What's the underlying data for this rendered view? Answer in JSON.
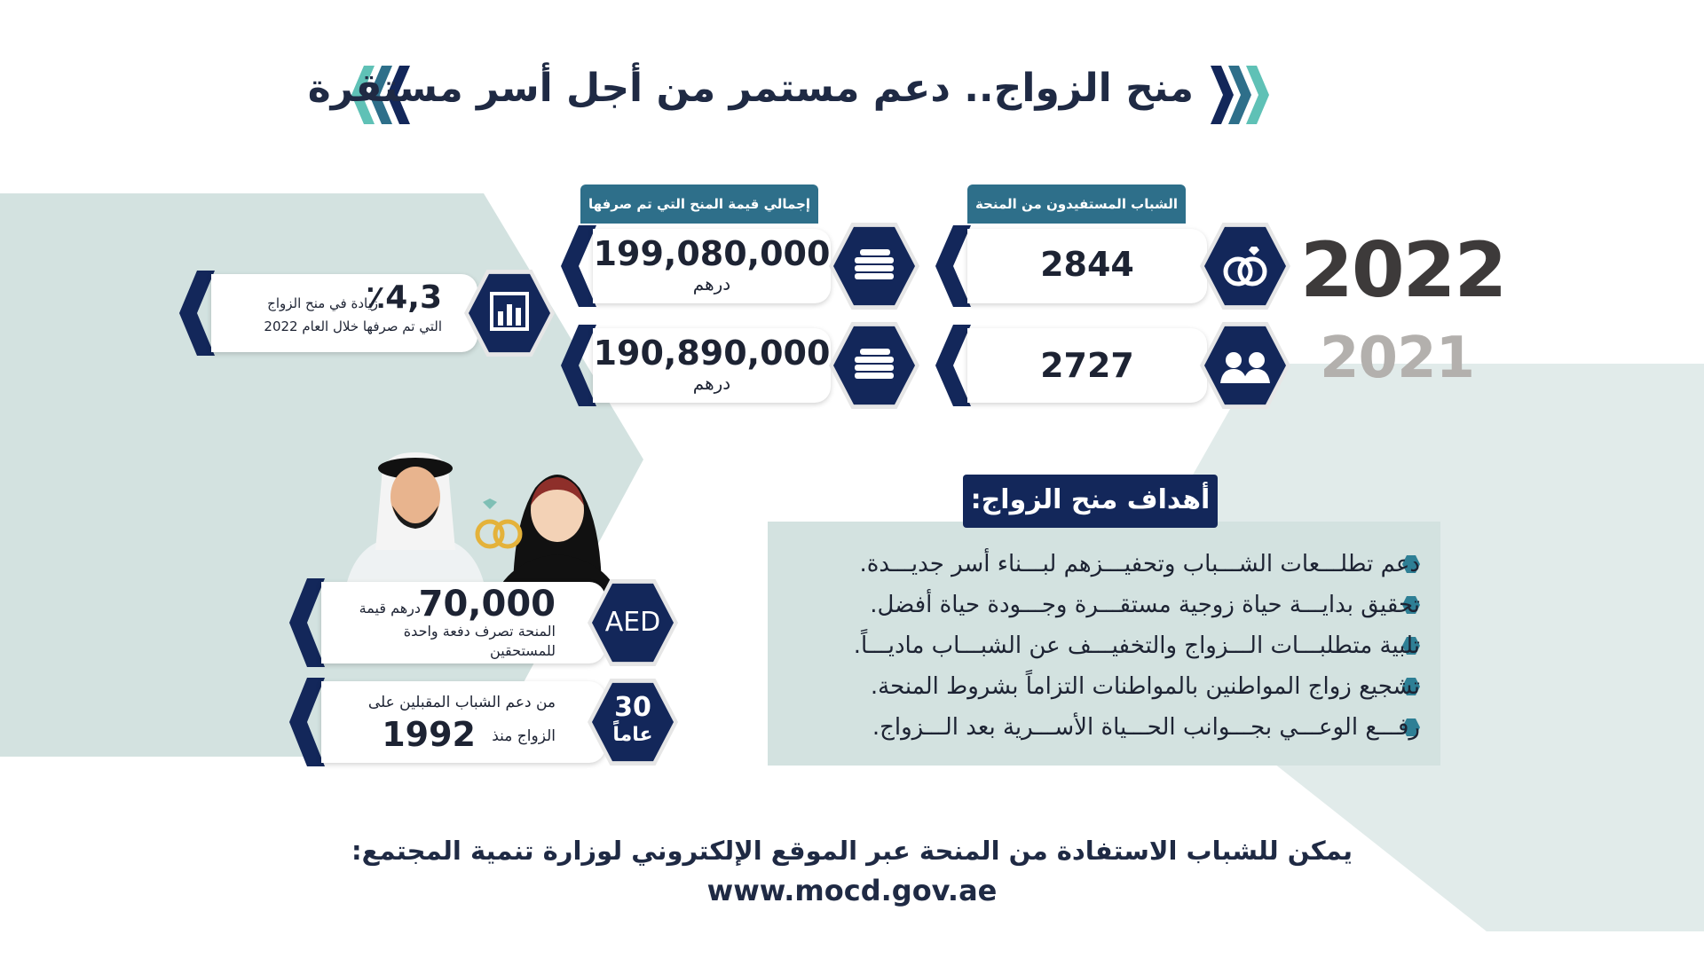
{
  "title": "منح الزواج.. دعم مستمر من أجل أسر مستقرة",
  "years": {
    "current": "2022",
    "previous": "2021"
  },
  "columns": {
    "beneficiaries_label": "الشباب المستفيدون من المنحة",
    "total_value_label": "إجمالي قيمة المنح التي تم صرفها"
  },
  "stats_2022": {
    "beneficiaries": "2844",
    "total_value": "199,080,000",
    "currency": "درهم"
  },
  "stats_2021": {
    "beneficiaries": "2727",
    "total_value": "190,890,000",
    "currency": "درهم"
  },
  "increase": {
    "value": "٪4,3",
    "line1": "زيادة في منح الزواج",
    "line2": "التي تم صرفها خلال العام 2022"
  },
  "grant": {
    "badge": "AED",
    "amount": "70,000",
    "unit": "درهم قيمة",
    "line1": "المنحة تصرف دفعة واحدة",
    "line2": "للمستحقين"
  },
  "years_support": {
    "badge_number": "30",
    "badge_word": "عاماً",
    "line1": "من دعم الشباب المقبلين على",
    "line2": "الزواج منذ",
    "year": "1992"
  },
  "goals": {
    "title": "أهداف منح الزواج:",
    "items": [
      "دعم تطلـــعات الشـــباب وتحفيـــزهم لبـــناء أسر جديـــدة.",
      "تحقيق بدايـــة حياة زوجية مستقـــرة وجـــودة حياة أفضل.",
      "تلبية متطلبـــات الـــزواج والتخفيـــف عن الشبـــاب ماديـــاً.",
      "تشجيع زواج المواطنين بالمواطنات التزاماً بشروط المنحة.",
      "رفـــع الوعـــي بجـــوانب الحـــياة الأســـرية بعد الـــزواج."
    ]
  },
  "footer": {
    "text": "يمكن للشباب الاستفادة من المنحة عبر الموقع الإلكتروني لوزارة تنمية المجتمع:",
    "url": "www.mocd.gov.ae"
  },
  "colors": {
    "navy": "#13275a",
    "teal": "#2e6f8a",
    "light_teal": "#5fc1b6",
    "bg_mint": "#d3e2e0"
  },
  "icons": [
    "chevrons-left-icon",
    "chevrons-right-icon",
    "rings-icon",
    "couple-icon",
    "coins-icon",
    "bar-chart-icon",
    "diamond-ring-icon"
  ]
}
